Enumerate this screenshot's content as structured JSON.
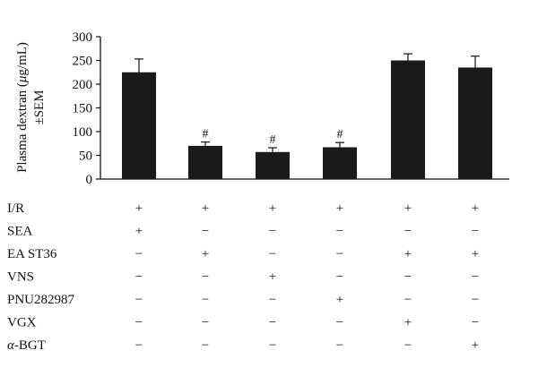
{
  "chart_data": {
    "type": "bar",
    "ylabel_line1": "Plasma dextran (",
    "ylabel_mu": "μ",
    "ylabel_unit": "g/mL)",
    "ylabel_line2": "±SEM",
    "ylim": [
      0,
      300
    ],
    "yticks": [
      0,
      50,
      100,
      150,
      200,
      250,
      300
    ],
    "grid": false,
    "values": [
      225,
      70,
      57,
      67,
      250,
      235
    ],
    "errors": [
      28,
      8,
      9,
      10,
      14,
      24
    ],
    "significance": [
      "",
      "#",
      "#",
      "#",
      "",
      ""
    ],
    "bar_color": "#1a1a1a"
  },
  "conditions_table": {
    "rows": [
      {
        "label_prefix": "",
        "label": "I/R",
        "marks": [
          "+",
          "+",
          "+",
          "+",
          "+",
          "+"
        ]
      },
      {
        "label_prefix": "",
        "label": "SEA",
        "marks": [
          "+",
          "−",
          "−",
          "−",
          "−",
          "−"
        ]
      },
      {
        "label_prefix": "",
        "label": "EA ST36",
        "marks": [
          "−",
          "+",
          "−",
          "−",
          "+",
          "+"
        ]
      },
      {
        "label_prefix": "",
        "label": "VNS",
        "marks": [
          "−",
          "−",
          "+",
          "−",
          "−",
          "−"
        ]
      },
      {
        "label_prefix": "",
        "label": "PNU282987",
        "marks": [
          "−",
          "−",
          "−",
          "+",
          "−",
          "−"
        ]
      },
      {
        "label_prefix": "",
        "label": "VGX",
        "marks": [
          "−",
          "−",
          "−",
          "−",
          "+",
          "−"
        ]
      },
      {
        "label_prefix": "α",
        "label": "-BGT",
        "marks": [
          "−",
          "−",
          "−",
          "−",
          "−",
          "+"
        ]
      }
    ]
  }
}
